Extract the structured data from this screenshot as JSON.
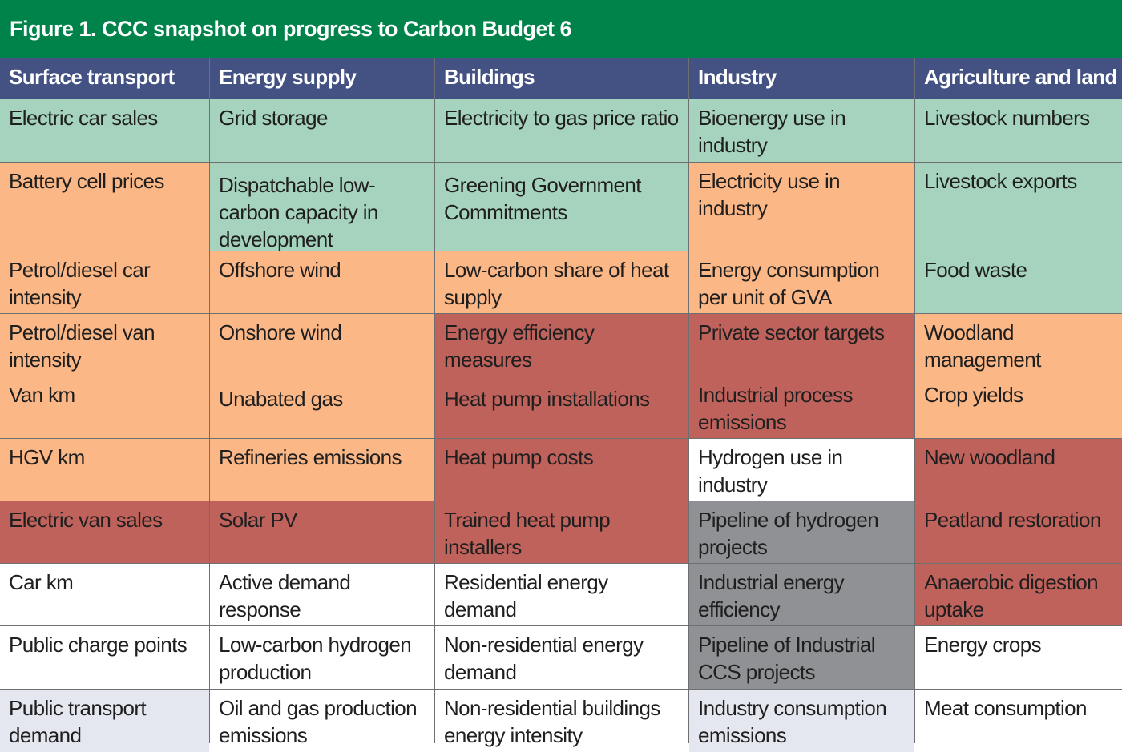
{
  "title": "Figure 1. CCC snapshot on progress to Carbon Budget 6",
  "columns": [
    "Surface transport",
    "Energy supply",
    "Buildings",
    "Industry",
    "Agriculture and land"
  ],
  "status_colors": {
    "green": "#a6d3bd",
    "orange": "#fbb786",
    "red": "#c0625c",
    "white": "#ffffff",
    "grey": "#8f9194",
    "lavender": "#e4e7ef"
  },
  "rows": [
    [
      {
        "text": "Electric car sales",
        "status": "green"
      },
      {
        "text": "Grid storage",
        "status": "green"
      },
      {
        "text": "Electricity to gas price ratio",
        "status": "green"
      },
      {
        "text": "Bioenergy use in industry",
        "status": "green"
      },
      {
        "text": "Livestock numbers",
        "status": "green"
      }
    ],
    [
      {
        "text": "Battery cell prices",
        "status": "orange"
      },
      {
        "text": "Dispatchable low-carbon capacity in development",
        "status": "green"
      },
      {
        "text": "Greening Government Commitments",
        "status": "green"
      },
      {
        "text": "Electricity use in industry",
        "status": "orange"
      },
      {
        "text": "Livestock exports",
        "status": "green"
      }
    ],
    [
      {
        "text": "Petrol/diesel car intensity",
        "status": "orange"
      },
      {
        "text": "Offshore wind",
        "status": "orange"
      },
      {
        "text": "Low-carbon share of heat supply",
        "status": "orange"
      },
      {
        "text": "Energy consumption per unit of GVA",
        "status": "orange"
      },
      {
        "text": "Food waste",
        "status": "green"
      }
    ],
    [
      {
        "text": "Petrol/diesel van intensity",
        "status": "orange"
      },
      {
        "text": "Onshore wind",
        "status": "orange"
      },
      {
        "text": "Energy efficiency measures",
        "status": "red"
      },
      {
        "text": "Private sector targets",
        "status": "red"
      },
      {
        "text": "Woodland management",
        "status": "orange"
      }
    ],
    [
      {
        "text": "Van km",
        "status": "orange"
      },
      {
        "text": "Unabated gas",
        "status": "orange"
      },
      {
        "text": "Heat pump installations",
        "status": "red"
      },
      {
        "text": "Industrial process emissions",
        "status": "red"
      },
      {
        "text": "Crop yields",
        "status": "orange"
      }
    ],
    [
      {
        "text": "HGV km",
        "status": "orange"
      },
      {
        "text": "Refineries emissions",
        "status": "orange"
      },
      {
        "text": "Heat pump costs",
        "status": "red"
      },
      {
        "text": "Hydrogen use in industry",
        "status": "white"
      },
      {
        "text": "New woodland",
        "status": "red"
      }
    ],
    [
      {
        "text": "Electric van sales",
        "status": "red"
      },
      {
        "text": "Solar PV",
        "status": "red"
      },
      {
        "text": "Trained heat pump installers",
        "status": "red"
      },
      {
        "text": "Pipeline of hydrogen projects",
        "status": "grey"
      },
      {
        "text": "Peatland restoration",
        "status": "red"
      }
    ],
    [
      {
        "text": "Car km",
        "status": "white"
      },
      {
        "text": "Active demand response",
        "status": "white"
      },
      {
        "text": "Residential energy demand",
        "status": "white"
      },
      {
        "text": "Industrial energy efficiency",
        "status": "grey"
      },
      {
        "text": "Anaerobic digestion uptake",
        "status": "red"
      }
    ],
    [
      {
        "text": "Public charge points",
        "status": "white"
      },
      {
        "text": "Low-carbon hydrogen production",
        "status": "white"
      },
      {
        "text": "Non-residential energy demand",
        "status": "white"
      },
      {
        "text": "Pipeline of Industrial CCS projects",
        "status": "grey"
      },
      {
        "text": "Energy crops",
        "status": "white"
      }
    ],
    [
      {
        "text": "Public transport demand",
        "status": "lavender"
      },
      {
        "text": "Oil and gas production emissions",
        "status": "white"
      },
      {
        "text": "Non-residential buildings energy intensity",
        "status": "white"
      },
      {
        "text": "Industry consumption emissions",
        "status": "lavender"
      },
      {
        "text": "Meat consumption",
        "status": "white"
      }
    ]
  ]
}
